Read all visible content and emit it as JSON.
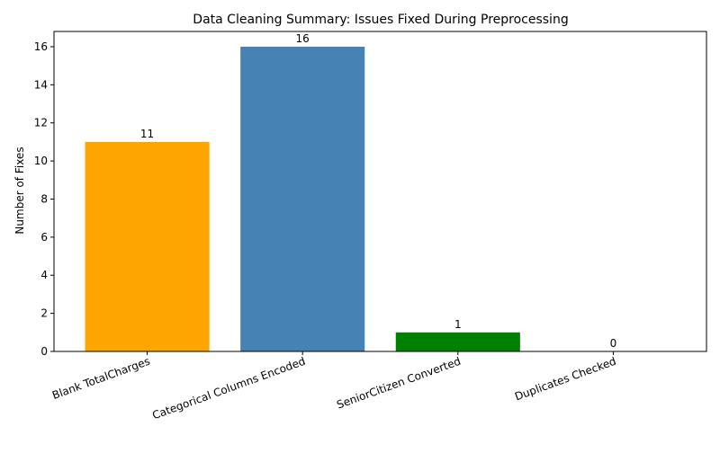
{
  "chart_data": {
    "type": "bar",
    "title": "Data Cleaning Summary: Issues Fixed During Preprocessing",
    "xlabel": "",
    "ylabel": "Number of Fixes",
    "categories": [
      "Blank TotalCharges",
      "Categorical Columns Encoded",
      "SeniorCitizen Converted",
      "Duplicates Checked"
    ],
    "values": [
      11,
      16,
      1,
      0
    ],
    "value_labels": [
      "11",
      "16",
      "1",
      "0"
    ],
    "colors": [
      "#ffa500",
      "#4682b4",
      "#008000",
      "#ff0000"
    ],
    "ylim": [
      0,
      16.8
    ],
    "yticks": [
      0,
      2,
      4,
      6,
      8,
      10,
      12,
      14,
      16
    ],
    "ytick_labels": [
      "0",
      "2",
      "4",
      "6",
      "8",
      "10",
      "12",
      "14",
      "16"
    ],
    "x_tick_rotation_deg": 20,
    "grid": false,
    "legend": false
  }
}
